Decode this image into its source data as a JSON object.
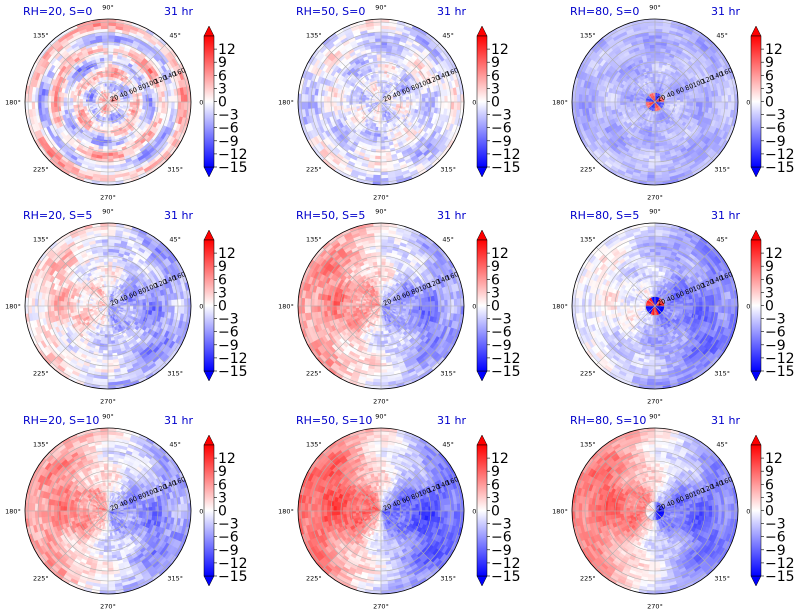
{
  "chart_data": {
    "type": "heatmap",
    "projection": "polar",
    "grid": true,
    "time_label": "31 hr",
    "angle_ticks": [
      "0°",
      "45°",
      "90°",
      "135°",
      "180°",
      "225°",
      "270°",
      "315°"
    ],
    "radial_ticks": [
      "20",
      "40",
      "60",
      "80",
      "100",
      "120",
      "140",
      "160"
    ],
    "radial_max": 160,
    "colorbar": {
      "colormap": "bwr",
      "vmin": -15,
      "vmax": 15,
      "extend": "both",
      "tick_labels": [
        "12",
        "9",
        "6",
        "3",
        "0",
        "−3",
        "−6",
        "−9",
        "−12",
        "−15"
      ],
      "tick_values": [
        12,
        9,
        6,
        3,
        0,
        -3,
        -6,
        -9,
        -12,
        -15
      ]
    },
    "panels": [
      {
        "title": "RH=20, S=0",
        "rh": 20,
        "shear": 0,
        "pattern": "mixed_rings",
        "bias": 0.0
      },
      {
        "title": "RH=50, S=0",
        "rh": 50,
        "shear": 0,
        "pattern": "mixed_spiral",
        "bias": -0.1
      },
      {
        "title": "RH=80, S=0",
        "rh": 80,
        "shear": 0,
        "pattern": "core_intense",
        "bias": -0.25
      },
      {
        "title": "RH=20, S=5",
        "rh": 20,
        "shear": 5,
        "pattern": "dipole_weak",
        "bias": -0.05
      },
      {
        "title": "RH=50, S=5",
        "rh": 50,
        "shear": 5,
        "pattern": "dipole_medium",
        "bias": 0.0
      },
      {
        "title": "RH=80, S=5",
        "rh": 80,
        "shear": 5,
        "pattern": "dipole_core",
        "bias": -0.15
      },
      {
        "title": "RH=20, S=10",
        "rh": 20,
        "shear": 10,
        "pattern": "dipole_medium",
        "bias": 0.0
      },
      {
        "title": "RH=50, S=10",
        "rh": 50,
        "shear": 10,
        "pattern": "dipole_strong",
        "bias": 0.0
      },
      {
        "title": "RH=80, S=10",
        "rh": 80,
        "shear": 10,
        "pattern": "dipole_strong_core",
        "bias": 0.0
      }
    ]
  }
}
